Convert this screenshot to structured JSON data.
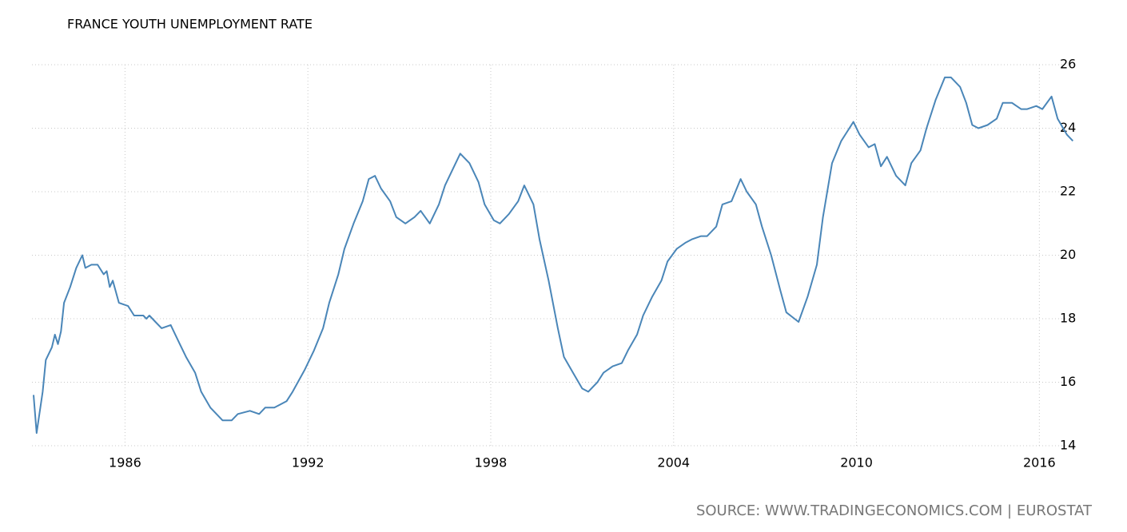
{
  "chart_data": {
    "type": "line",
    "title": "FRANCE YOUTH UNEMPLOYMENT RATE",
    "source": "SOURCE:  WWW.TRADINGECONOMICS.COM  |  EUROSTAT",
    "x": [
      1983.0,
      1983.1,
      1983.3,
      1983.4,
      1983.6,
      1983.7,
      1983.8,
      1983.9,
      1984.0,
      1984.2,
      1984.4,
      1984.6,
      1984.7,
      1984.9,
      1985.1,
      1985.3,
      1985.4,
      1985.5,
      1985.6,
      1985.8,
      1986.1,
      1986.3,
      1986.6,
      1986.7,
      1986.8,
      1987.0,
      1987.2,
      1987.5,
      1987.6,
      1987.8,
      1988.0,
      1988.3,
      1988.5,
      1988.8,
      1989.2,
      1989.5,
      1989.7,
      1990.1,
      1990.4,
      1990.6,
      1990.9,
      1991.3,
      1991.5,
      1991.9,
      1992.2,
      1992.5,
      1992.7,
      1993.0,
      1993.2,
      1993.5,
      1993.8,
      1994.0,
      1994.2,
      1994.4,
      1994.7,
      1994.9,
      1995.2,
      1995.5,
      1995.7,
      1996.0,
      1996.3,
      1996.5,
      1996.8,
      1997.0,
      1997.3,
      1997.6,
      1997.8,
      1998.1,
      1998.3,
      1998.6,
      1998.9,
      1999.1,
      1999.4,
      1999.6,
      1999.9,
      2000.2,
      2000.4,
      2000.7,
      2001.0,
      2001.2,
      2001.5,
      2001.7,
      2002.0,
      2002.3,
      2002.5,
      2002.8,
      2003.0,
      2003.3,
      2003.6,
      2003.8,
      2004.1,
      2004.4,
      2004.6,
      2004.9,
      2005.1,
      2005.4,
      2005.6,
      2005.9,
      2006.2,
      2006.4,
      2006.7,
      2006.9,
      2007.2,
      2007.5,
      2007.7,
      2008.1,
      2008.4,
      2008.7,
      2008.9,
      2009.2,
      2009.5,
      2009.7,
      2009.9,
      2010.1,
      2010.4,
      2010.6,
      2010.8,
      2011.0,
      2011.3,
      2011.6,
      2011.8,
      2012.1,
      2012.3,
      2012.6,
      2012.9,
      2013.1,
      2013.4,
      2013.6,
      2013.8,
      2014.0,
      2014.3,
      2014.6,
      2014.8,
      2015.1,
      2015.4,
      2015.6,
      2015.9,
      2016.1,
      2016.4,
      2016.6,
      2016.9,
      2017.1
    ],
    "series": [
      {
        "name": "Youth Unemployment Rate",
        "color": "#4a86b8",
        "values": [
          15.6,
          14.4,
          15.7,
          16.7,
          17.1,
          17.5,
          17.2,
          17.6,
          18.5,
          19.0,
          19.6,
          20.0,
          19.6,
          19.7,
          19.7,
          19.4,
          19.5,
          19.0,
          19.2,
          18.5,
          18.4,
          18.1,
          18.1,
          18.0,
          18.1,
          17.9,
          17.7,
          17.8,
          17.6,
          17.2,
          16.8,
          16.3,
          15.7,
          15.2,
          14.8,
          14.8,
          15.0,
          15.1,
          15.0,
          15.2,
          15.2,
          15.4,
          15.7,
          16.4,
          17.0,
          17.7,
          18.5,
          19.4,
          20.2,
          21.0,
          21.7,
          22.4,
          22.5,
          22.1,
          21.7,
          21.2,
          21.0,
          21.2,
          21.4,
          21.0,
          21.6,
          22.2,
          22.8,
          23.2,
          22.9,
          22.3,
          21.6,
          21.1,
          21.0,
          21.3,
          21.7,
          22.2,
          21.6,
          20.5,
          19.2,
          17.7,
          16.8,
          16.3,
          15.8,
          15.7,
          16.0,
          16.3,
          16.5,
          16.6,
          17.0,
          17.5,
          18.1,
          18.7,
          19.2,
          19.8,
          20.2,
          20.4,
          20.5,
          20.6,
          20.6,
          20.9,
          21.6,
          21.7,
          22.4,
          22.0,
          21.6,
          20.9,
          20.0,
          18.9,
          18.2,
          17.9,
          18.7,
          19.7,
          21.2,
          22.9,
          23.6,
          23.9,
          24.2,
          23.8,
          23.4,
          23.5,
          22.8,
          23.1,
          22.5,
          22.2,
          22.9,
          23.3,
          24.0,
          24.9,
          25.6,
          25.6,
          25.3,
          24.8,
          24.1,
          24.0,
          24.1,
          24.3,
          24.8,
          24.8,
          24.6,
          24.6,
          24.7,
          24.6,
          25.0,
          24.3,
          23.8,
          23.6
        ]
      }
    ],
    "xlim": [
      1983,
      2017.25
    ],
    "xticks": [
      1986,
      1992,
      1998,
      2004,
      2010,
      2016
    ],
    "ylim": [
      14,
      26
    ],
    "yticks": [
      14,
      16,
      18,
      20,
      22,
      24,
      26
    ],
    "grid": true
  }
}
